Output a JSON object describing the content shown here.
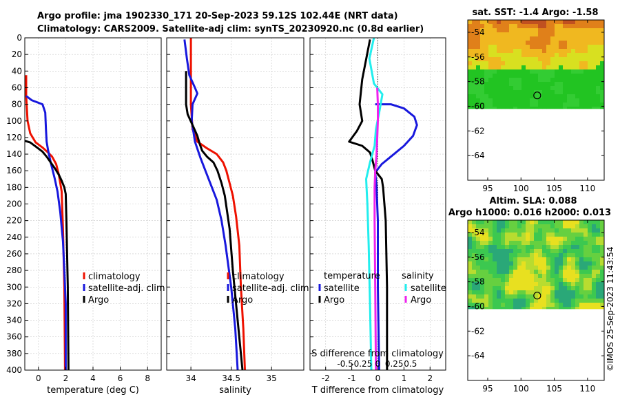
{
  "figure": {
    "title_line1": "Argo profile: jma 1902330_171 20-Sep-2023 59.12S 102.44E (NRT data)",
    "title_line2": "Climatology: CARS2009. Satellite-adj clim: synTS_20230920.nc (0.8d earlier)",
    "watermark": "©IMOS 25-Sep-2023 11:43:54"
  },
  "colors": {
    "climatology": "#ee1100",
    "satellite": "#1818dd",
    "argo": "#000000",
    "salinity_diff": "#22eeee",
    "salinity_sat": "#ee22ee"
  },
  "chart_data": [
    {
      "id": "temperature",
      "type": "line",
      "xlabel": "temperature (deg C)",
      "ylabel": "",
      "xlim": [
        -1,
        9
      ],
      "ylim": [
        0,
        400
      ],
      "x_ticks": [
        "0",
        "2",
        "4",
        "6",
        "8"
      ],
      "x_tick_values": [
        0,
        2,
        4,
        6,
        8
      ],
      "y_ticks": [
        "0",
        "20",
        "40",
        "60",
        "80",
        "100",
        "120",
        "140",
        "160",
        "180",
        "200",
        "220",
        "240",
        "260",
        "280",
        "300",
        "320",
        "340",
        "360",
        "380",
        "400"
      ],
      "grid": true,
      "legend": [
        "climatology",
        "satellite-adj. clim",
        "Argo"
      ],
      "series": [
        {
          "name": "climatology",
          "color": "#ee1100",
          "points": [
            [
              -0.9,
              45
            ],
            [
              -0.9,
              70
            ],
            [
              -0.8,
              100
            ],
            [
              -0.6,
              115
            ],
            [
              -0.2,
              126
            ],
            [
              0.3,
              132
            ],
            [
              0.7,
              138
            ],
            [
              1.0,
              143
            ],
            [
              1.3,
              152
            ],
            [
              1.5,
              165
            ],
            [
              1.7,
              185
            ],
            [
              1.8,
              230
            ],
            [
              1.9,
              300
            ],
            [
              1.95,
              400
            ]
          ]
        },
        {
          "name": "satellite-adj. clim",
          "color": "#1818dd",
          "points": [
            [
              -0.9,
              70
            ],
            [
              -0.5,
              75
            ],
            [
              0.3,
              80
            ],
            [
              0.5,
              90
            ],
            [
              0.55,
              110
            ],
            [
              0.6,
              125
            ],
            [
              0.7,
              135
            ],
            [
              0.9,
              150
            ],
            [
              1.2,
              170
            ],
            [
              1.4,
              185
            ],
            [
              1.6,
              210
            ],
            [
              1.8,
              245
            ],
            [
              1.9,
              280
            ],
            [
              2.0,
              320
            ],
            [
              2.0,
              400
            ]
          ]
        },
        {
          "name": "Argo",
          "color": "#000000",
          "points": [
            [
              -1.0,
              124
            ],
            [
              -0.6,
              126
            ],
            [
              -0.1,
              132
            ],
            [
              0.3,
              137
            ],
            [
              0.6,
              143
            ],
            [
              0.9,
              150
            ],
            [
              1.2,
              157
            ],
            [
              1.5,
              165
            ],
            [
              1.7,
              172
            ],
            [
              1.9,
              180
            ],
            [
              2.0,
              188
            ],
            [
              2.05,
              220
            ],
            [
              2.1,
              260
            ],
            [
              2.15,
              300
            ],
            [
              2.2,
              400
            ]
          ]
        }
      ]
    },
    {
      "id": "salinity",
      "type": "line",
      "xlabel": "salinity",
      "ylabel": "",
      "xlim": [
        33.7,
        35.4
      ],
      "ylim": [
        0,
        400
      ],
      "x_ticks": [
        "34",
        "34.5",
        "35"
      ],
      "x_tick_values": [
        34,
        34.5,
        35
      ],
      "grid": true,
      "legend": [
        "climatology",
        "satellite-adj. clim",
        "Argo"
      ],
      "series": [
        {
          "name": "climatology",
          "color": "#ee1100",
          "points": [
            [
              34.0,
              0
            ],
            [
              34.0,
              40
            ],
            [
              34.0,
              80
            ],
            [
              34.02,
              110
            ],
            [
              34.08,
              125
            ],
            [
              34.2,
              133
            ],
            [
              34.32,
              140
            ],
            [
              34.4,
              150
            ],
            [
              34.44,
              160
            ],
            [
              34.48,
              175
            ],
            [
              34.52,
              190
            ],
            [
              34.56,
              215
            ],
            [
              34.6,
              250
            ],
            [
              34.62,
              300
            ],
            [
              34.65,
              350
            ],
            [
              34.67,
              400
            ]
          ]
        },
        {
          "name": "satellite-adj. clim",
          "color": "#1818dd",
          "points": [
            [
              33.92,
              2
            ],
            [
              33.95,
              25
            ],
            [
              33.98,
              45
            ],
            [
              34.05,
              60
            ],
            [
              34.08,
              67
            ],
            [
              34.02,
              80
            ],
            [
              34.01,
              100
            ],
            [
              34.05,
              125
            ],
            [
              34.12,
              145
            ],
            [
              34.22,
              170
            ],
            [
              34.32,
              195
            ],
            [
              34.38,
              220
            ],
            [
              34.43,
              250
            ],
            [
              34.5,
              300
            ],
            [
              34.55,
              350
            ],
            [
              34.58,
              400
            ]
          ]
        },
        {
          "name": "Argo",
          "color": "#000000",
          "points": [
            [
              33.94,
              40
            ],
            [
              33.94,
              60
            ],
            [
              33.94,
              80
            ],
            [
              33.96,
              92
            ],
            [
              34.02,
              105
            ],
            [
              34.08,
              118
            ],
            [
              34.11,
              128
            ],
            [
              34.14,
              136
            ],
            [
              34.2,
              143
            ],
            [
              34.28,
              150
            ],
            [
              34.33,
              160
            ],
            [
              34.38,
              175
            ],
            [
              34.42,
              190
            ],
            [
              34.48,
              230
            ],
            [
              34.52,
              280
            ],
            [
              34.57,
              330
            ],
            [
              34.61,
              370
            ],
            [
              34.64,
              400
            ]
          ]
        }
      ]
    },
    {
      "id": "difference",
      "type": "line",
      "xlabel": "T difference from climatology",
      "x2label": "S difference from climatology",
      "xlim": [
        -2.6,
        2.6
      ],
      "ylim": [
        0,
        400
      ],
      "x_ticks": [
        "-2",
        "-1",
        "0",
        "1",
        "2"
      ],
      "x_tick_values": [
        -2,
        -1,
        0,
        1,
        2
      ],
      "x2_ticks": [
        "-0.5",
        "-0.25",
        "0",
        "0.25",
        "0.5"
      ],
      "x2_tick_values": [
        -0.5,
        -0.25,
        0,
        0.25,
        0.5
      ],
      "grid": true,
      "zero_line": true,
      "legend_left_title": "temperature",
      "legend_right_title": "salinity",
      "legend_left": [
        "satellite",
        "Argo"
      ],
      "legend_right": [
        "satellite",
        "Argo"
      ],
      "series": [
        {
          "name": "temperature satellite",
          "color": "#1818dd",
          "points": [
            [
              -0.1,
              80
            ],
            [
              0.5,
              80
            ],
            [
              1.0,
              85
            ],
            [
              1.4,
              95
            ],
            [
              1.5,
              105
            ],
            [
              1.35,
              118
            ],
            [
              1.0,
              130
            ],
            [
              0.5,
              143
            ],
            [
              0.15,
              152
            ],
            [
              -0.1,
              162
            ],
            [
              -0.05,
              180
            ],
            [
              0.0,
              220
            ],
            [
              0.0,
              300
            ],
            [
              0.05,
              400
            ]
          ]
        },
        {
          "name": "temperature Argo",
          "color": "#000000",
          "points": [
            [
              -0.3,
              2
            ],
            [
              -0.6,
              50
            ],
            [
              -0.7,
              80
            ],
            [
              -0.6,
              100
            ],
            [
              -0.8,
              112
            ],
            [
              -1.1,
              125
            ],
            [
              -0.6,
              130
            ],
            [
              -0.3,
              138
            ],
            [
              -0.2,
              148
            ],
            [
              -0.1,
              160
            ],
            [
              0.15,
              170
            ],
            [
              0.2,
              180
            ],
            [
              0.3,
              220
            ],
            [
              0.35,
              300
            ],
            [
              0.35,
              400
            ]
          ]
        },
        {
          "name": "salinity satellite",
          "color": "#22eeee",
          "points": [
            [
              -0.06,
              0
            ],
            [
              -0.13,
              25
            ],
            [
              -0.06,
              55
            ],
            [
              0.07,
              68
            ],
            [
              0.02,
              90
            ],
            [
              -0.03,
              110
            ],
            [
              -0.05,
              130
            ],
            [
              -0.12,
              150
            ],
            [
              -0.18,
              170
            ],
            [
              -0.16,
              200
            ],
            [
              -0.14,
              250
            ],
            [
              -0.12,
              320
            ],
            [
              -0.1,
              400
            ]
          ]
        },
        {
          "name": "salinity Argo",
          "color": "#ee22ee",
          "points": [
            [
              -0.01,
              60
            ],
            [
              0.0,
              80
            ],
            [
              0.0,
              100
            ],
            [
              -0.01,
              120
            ],
            [
              -0.02,
              140
            ],
            [
              -0.04,
              160
            ],
            [
              -0.05,
              180
            ],
            [
              -0.05,
              220
            ],
            [
              -0.04,
              300
            ],
            [
              -0.03,
              400
            ]
          ]
        }
      ]
    },
    {
      "id": "sst-map",
      "type": "heatmap",
      "title": "sat. SST: -1.4 Argo: -1.58",
      "xlim": [
        92,
        112.5
      ],
      "ylim": [
        -66,
        -53
      ],
      "x_ticks": [
        "95",
        "100",
        "105",
        "110"
      ],
      "x_tick_values": [
        95,
        100,
        105,
        110
      ],
      "y_ticks": [
        "-54",
        "-56",
        "-58",
        "-60",
        "-62",
        "-64"
      ],
      "y_tick_values": [
        -54,
        -56,
        -58,
        -60,
        -62,
        -64
      ],
      "data_lat_range": [
        -53,
        -60.2
      ],
      "marker": {
        "lon": 102.44,
        "lat": -59.12
      }
    },
    {
      "id": "sla-map",
      "type": "heatmap",
      "title": "Altim. SLA: 0.088",
      "subtitle": "Argo h1000: 0.016 h2000: 0.013",
      "xlim": [
        92,
        112.5
      ],
      "ylim": [
        -66,
        -53
      ],
      "x_ticks": [
        "95",
        "100",
        "105",
        "110"
      ],
      "x_tick_values": [
        95,
        100,
        105,
        110
      ],
      "y_ticks": [
        "-54",
        "-56",
        "-58",
        "-60",
        "-62",
        "-64"
      ],
      "y_tick_values": [
        -54,
        -56,
        -58,
        -60,
        -62,
        -64
      ],
      "data_lat_range": [
        -53,
        -60.2
      ],
      "marker": {
        "lon": 102.44,
        "lat": -59.12
      }
    }
  ]
}
